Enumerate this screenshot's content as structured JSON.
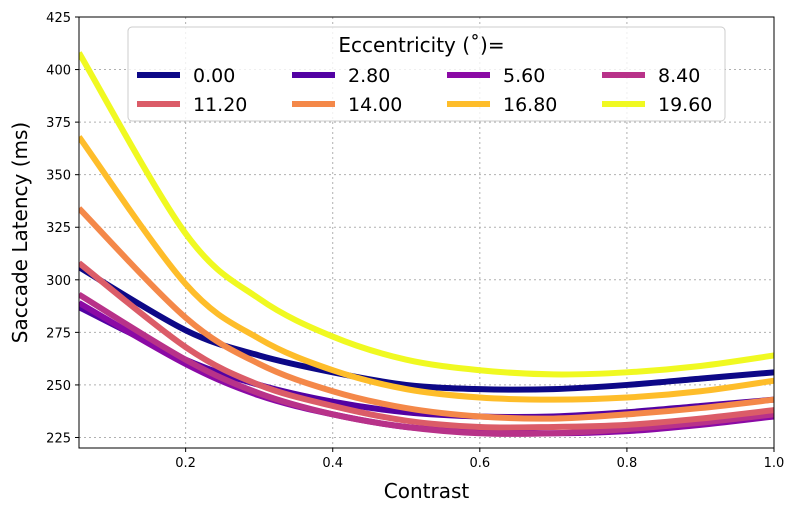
{
  "chart_data": {
    "type": "line",
    "title": "",
    "xlabel": "Contrast",
    "ylabel": "Saccade Latency (ms)",
    "xlim": [
      0.055,
      1.0
    ],
    "ylim": [
      220,
      425
    ],
    "xticks": [
      0.2,
      0.4,
      0.6,
      0.8,
      1.0
    ],
    "xtick_labels": [
      "0.2",
      "0.4",
      "0.6",
      "0.8",
      "1.0"
    ],
    "yticks": [
      225,
      250,
      275,
      300,
      325,
      350,
      375,
      400,
      425
    ],
    "ytick_labels": [
      "225",
      "250",
      "275",
      "300",
      "325",
      "350",
      "375",
      "400",
      "425"
    ],
    "grid": true,
    "legend": {
      "title": "Eccentricity ($^\\circ$)=",
      "title_display": "Eccentricity (˚)=",
      "location": "top-center",
      "columns": 4
    },
    "series": [
      {
        "name": "0.00",
        "color": "#0d0887",
        "points": [
          [
            0.055,
            306
          ],
          [
            0.2,
            276
          ],
          [
            0.3,
            264
          ],
          [
            0.4,
            256
          ],
          [
            0.5,
            250
          ],
          [
            0.6,
            248
          ],
          [
            0.7,
            248
          ],
          [
            0.8,
            250
          ],
          [
            0.9,
            253
          ],
          [
            1.0,
            256
          ]
        ]
      },
      {
        "name": "2.80",
        "color": "#5302a3",
        "points": [
          [
            0.055,
            287
          ],
          [
            0.2,
            262
          ],
          [
            0.3,
            250
          ],
          [
            0.4,
            242
          ],
          [
            0.5,
            237
          ],
          [
            0.6,
            235
          ],
          [
            0.7,
            235
          ],
          [
            0.8,
            237
          ],
          [
            0.9,
            240
          ],
          [
            1.0,
            243
          ]
        ]
      },
      {
        "name": "5.60",
        "color": "#8b0aa5",
        "points": [
          [
            0.055,
            289
          ],
          [
            0.2,
            260
          ],
          [
            0.3,
            245
          ],
          [
            0.4,
            236
          ],
          [
            0.5,
            230
          ],
          [
            0.6,
            228
          ],
          [
            0.7,
            227
          ],
          [
            0.8,
            228
          ],
          [
            0.9,
            231
          ],
          [
            1.0,
            235
          ]
        ]
      },
      {
        "name": "8.40",
        "color": "#b83289",
        "points": [
          [
            0.055,
            293
          ],
          [
            0.2,
            262
          ],
          [
            0.3,
            246
          ],
          [
            0.4,
            236
          ],
          [
            0.5,
            230
          ],
          [
            0.6,
            227
          ],
          [
            0.7,
            227
          ],
          [
            0.8,
            229
          ],
          [
            0.9,
            232
          ],
          [
            1.0,
            236
          ]
        ]
      },
      {
        "name": "11.20",
        "color": "#db5c68",
        "points": [
          [
            0.055,
            308
          ],
          [
            0.2,
            268
          ],
          [
            0.3,
            250
          ],
          [
            0.4,
            240
          ],
          [
            0.5,
            233
          ],
          [
            0.6,
            230
          ],
          [
            0.7,
            230
          ],
          [
            0.8,
            231
          ],
          [
            0.9,
            234
          ],
          [
            1.0,
            238
          ]
        ]
      },
      {
        "name": "14.00",
        "color": "#f48849",
        "points": [
          [
            0.055,
            334
          ],
          [
            0.2,
            282
          ],
          [
            0.3,
            260
          ],
          [
            0.4,
            247
          ],
          [
            0.5,
            239
          ],
          [
            0.6,
            235
          ],
          [
            0.7,
            234
          ],
          [
            0.8,
            236
          ],
          [
            0.9,
            239
          ],
          [
            1.0,
            243
          ]
        ]
      },
      {
        "name": "16.80",
        "color": "#febd2a",
        "points": [
          [
            0.055,
            368
          ],
          [
            0.2,
            298
          ],
          [
            0.3,
            272
          ],
          [
            0.4,
            257
          ],
          [
            0.5,
            248
          ],
          [
            0.6,
            244
          ],
          [
            0.7,
            243
          ],
          [
            0.8,
            244
          ],
          [
            0.9,
            247
          ],
          [
            1.0,
            252
          ]
        ]
      },
      {
        "name": "19.60",
        "color": "#f0f921",
        "points": [
          [
            0.055,
            408
          ],
          [
            0.2,
            322
          ],
          [
            0.3,
            291
          ],
          [
            0.4,
            273
          ],
          [
            0.5,
            262
          ],
          [
            0.6,
            257
          ],
          [
            0.7,
            255
          ],
          [
            0.8,
            256
          ],
          [
            0.9,
            259
          ],
          [
            1.0,
            264
          ]
        ]
      }
    ]
  }
}
